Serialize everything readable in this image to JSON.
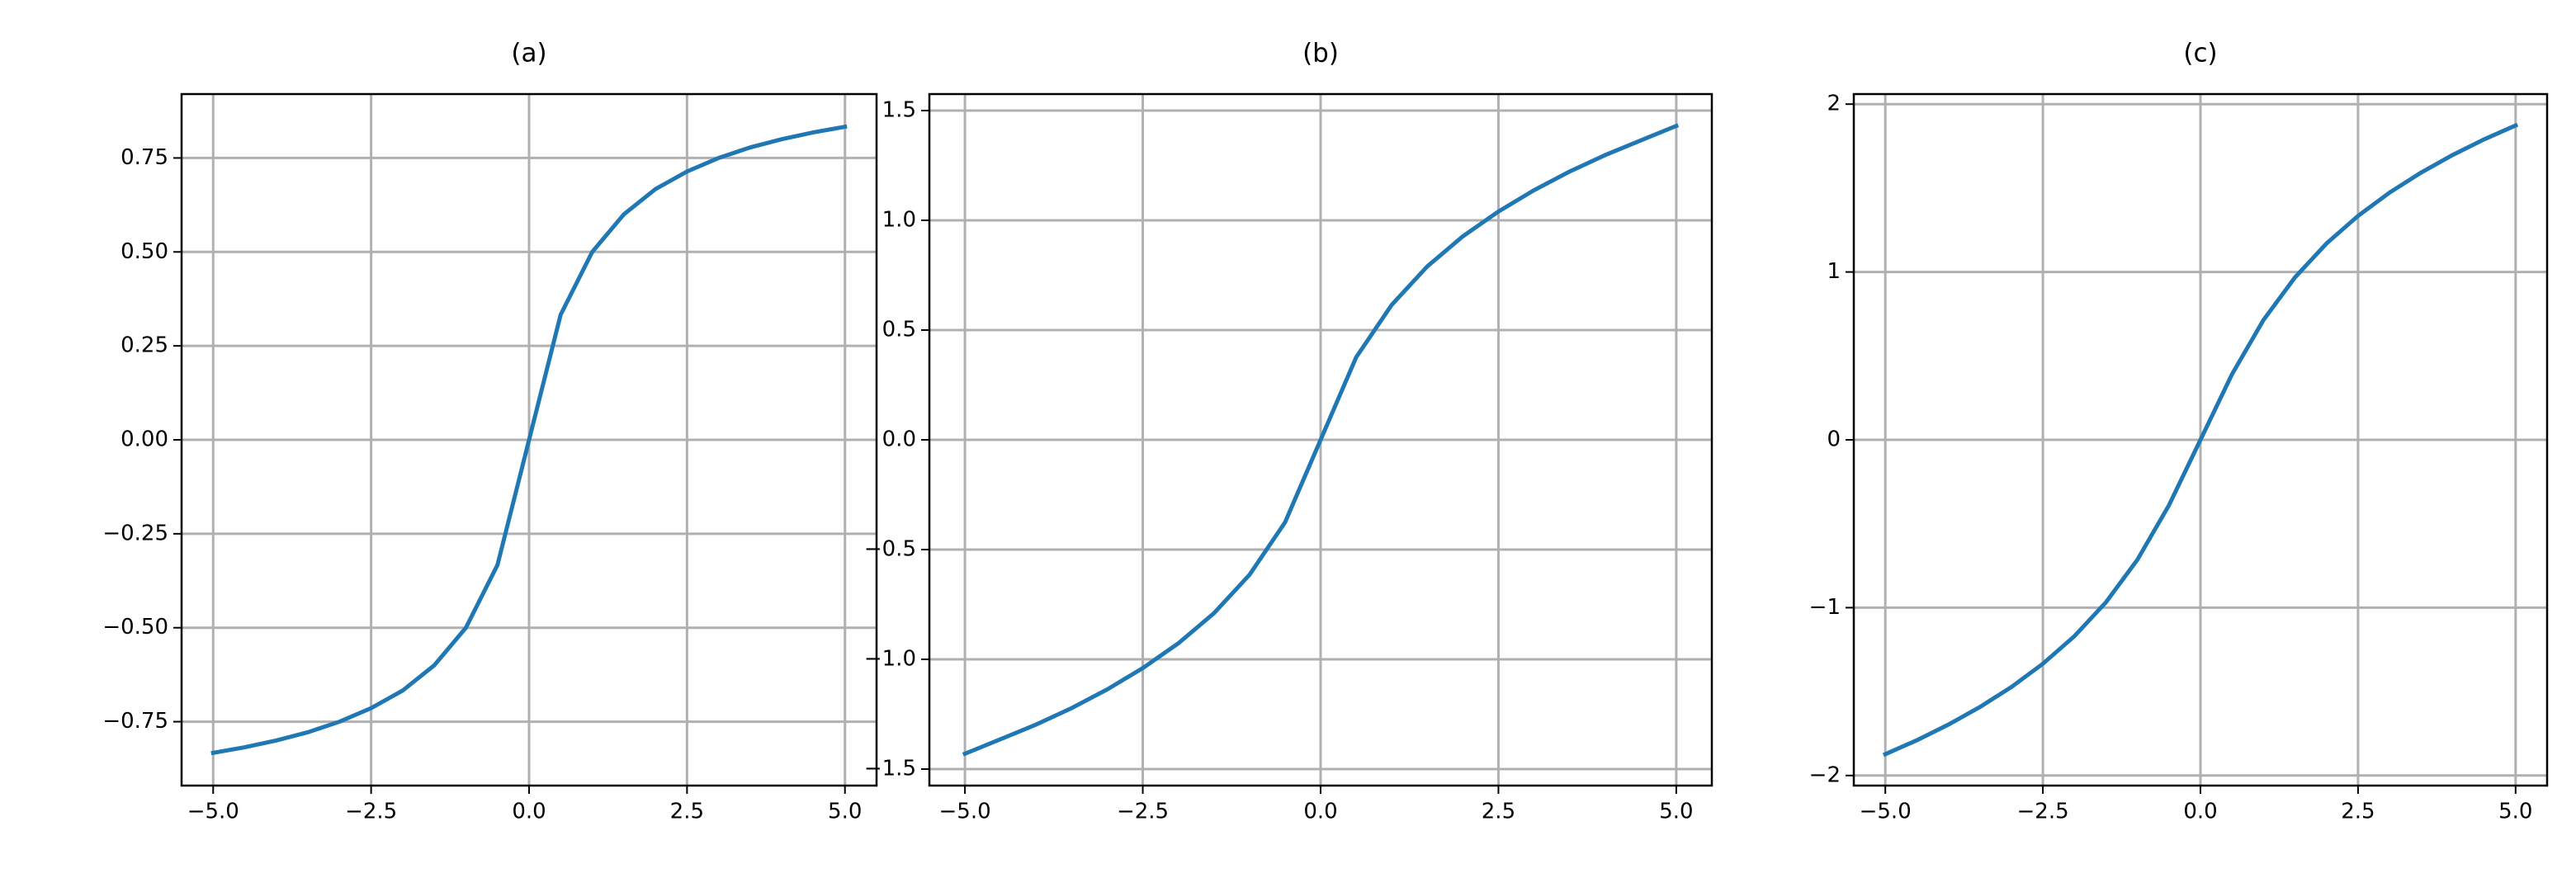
{
  "chart_data": [
    {
      "type": "line",
      "title": "(a)",
      "x": [
        -5,
        -4.5,
        -4,
        -3.5,
        -3,
        -2.5,
        -2,
        -1.5,
        -1,
        -0.5,
        0,
        0.5,
        1,
        1.5,
        2,
        2.5,
        3,
        3.5,
        4,
        4.5,
        5
      ],
      "series": [
        {
          "color": "#1f77b4",
          "values": [
            -0.833,
            -0.818,
            -0.8,
            -0.778,
            -0.75,
            -0.714,
            -0.667,
            -0.6,
            -0.5,
            -0.333,
            0,
            0.333,
            0.5,
            0.6,
            0.667,
            0.714,
            0.75,
            0.778,
            0.8,
            0.818,
            0.833
          ]
        }
      ],
      "xlim": [
        -5.5,
        5.5
      ],
      "ylim": [
        -0.92,
        0.92
      ],
      "grid": true,
      "xticks": [
        {
          "value": -5,
          "label": "−5.0"
        },
        {
          "value": -2.5,
          "label": "−2.5"
        },
        {
          "value": 0,
          "label": "0.0"
        },
        {
          "value": 2.5,
          "label": "2.5"
        },
        {
          "value": 5,
          "label": "5.0"
        }
      ],
      "yticks": [
        {
          "value": -0.75,
          "label": "−0.75"
        },
        {
          "value": -0.5,
          "label": "−0.50"
        },
        {
          "value": -0.25,
          "label": "−0.25"
        },
        {
          "value": 0,
          "label": "0.00"
        },
        {
          "value": 0.25,
          "label": "0.25"
        },
        {
          "value": 0.5,
          "label": "0.50"
        },
        {
          "value": 0.75,
          "label": "0.75"
        }
      ]
    },
    {
      "type": "line",
      "title": "(b)",
      "x": [
        -5,
        -4.5,
        -4,
        -3.5,
        -3,
        -2.5,
        -2,
        -1.5,
        -1,
        -0.5,
        0,
        0.5,
        1,
        1.5,
        2,
        2.5,
        3,
        3.5,
        4,
        4.5,
        5
      ],
      "series": [
        {
          "color": "#1f77b4",
          "values": [
            -1.43,
            -1.364,
            -1.297,
            -1.222,
            -1.137,
            -1.04,
            -0.927,
            -0.79,
            -0.615,
            -0.376,
            0,
            0.376,
            0.615,
            0.79,
            0.927,
            1.04,
            1.137,
            1.222,
            1.297,
            1.364,
            1.43
          ]
        }
      ],
      "xlim": [
        -5.5,
        5.5
      ],
      "ylim": [
        -1.575,
        1.575
      ],
      "grid": true,
      "xticks": [
        {
          "value": -5,
          "label": "−5.0"
        },
        {
          "value": -2.5,
          "label": "−2.5"
        },
        {
          "value": 0,
          "label": "0.0"
        },
        {
          "value": 2.5,
          "label": "2.5"
        },
        {
          "value": 5,
          "label": "5.0"
        }
      ],
      "yticks": [
        {
          "value": -1.5,
          "label": "−1.5"
        },
        {
          "value": -1,
          "label": "−1.0"
        },
        {
          "value": -0.5,
          "label": "−0.5"
        },
        {
          "value": 0,
          "label": "0.0"
        },
        {
          "value": 0.5,
          "label": "0.5"
        },
        {
          "value": 1,
          "label": "1.0"
        },
        1.5
      ]
    },
    {
      "type": "line",
      "title": "(c)",
      "x": [
        -5,
        -4.5,
        -4,
        -3.5,
        -3,
        -2.5,
        -2,
        -1.5,
        -1,
        -0.5,
        0,
        0.5,
        1,
        1.5,
        2,
        2.5,
        3,
        3.5,
        4,
        4.5,
        5
      ],
      "series": [
        {
          "color": "#1f77b4",
          "values": [
            -1.873,
            -1.79,
            -1.697,
            -1.592,
            -1.473,
            -1.334,
            -1.17,
            -0.968,
            -0.714,
            -0.39,
            0,
            0.39,
            0.714,
            0.968,
            1.17,
            1.334,
            1.473,
            1.592,
            1.697,
            1.79,
            1.873
          ]
        }
      ],
      "xlim": [
        -5.5,
        5.5
      ],
      "ylim": [
        -2.06,
        2.06
      ],
      "grid": true,
      "xticks": [
        {
          "value": -5,
          "label": "−5.0"
        },
        {
          "value": -2.5,
          "label": "−2.5"
        },
        {
          "value": 0,
          "label": "0.0"
        },
        {
          "value": 2.5,
          "label": "2.5"
        },
        {
          "value": 5,
          "label": "5.0"
        }
      ],
      "yticks": [
        {
          "value": -2,
          "label": "−2"
        },
        {
          "value": -1,
          "label": "−1"
        },
        0,
        1,
        2
      ]
    }
  ]
}
